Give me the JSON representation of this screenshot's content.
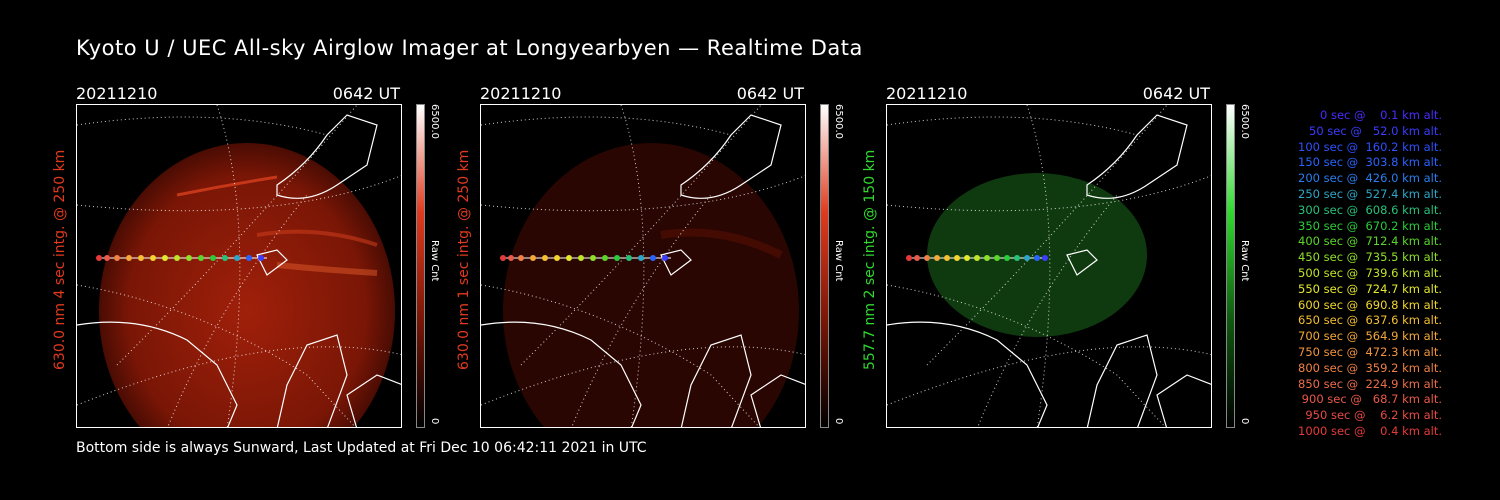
{
  "title": "Kyoto U / UEC All-sky Airglow Imager at Longyearbyen — Realtime Data",
  "footer": "Bottom side is always Sunward, Last Updated at Fri Dec 10 06:42:11 2021 in UTC",
  "colors": {
    "panel1": "#e03a1e",
    "panel2": "#e03a1e",
    "panel3": "#2fd92f"
  },
  "panels": [
    {
      "date": "20211210",
      "time": "0642 UT",
      "ylabel": "630.0 nm 4 sec intg. @ 250 km",
      "cbar_max": "6500.0",
      "cbar_min": "0",
      "cbar_unit": "Raw Cnt"
    },
    {
      "date": "20211210",
      "time": "0642 UT",
      "ylabel": "630.0 nm 1 sec intg. @ 250 km",
      "cbar_max": "6500.0",
      "cbar_min": "0",
      "cbar_unit": "Raw Cnt"
    },
    {
      "date": "20211210",
      "time": "0642 UT",
      "ylabel": "557.7 nm 2 sec intg. @ 150 km",
      "cbar_max": "6500.0",
      "cbar_min": "0",
      "cbar_unit": "Raw Cnt"
    }
  ],
  "legend": [
    {
      "text": "   0 sec @    0.1 km alt.",
      "color": "#4a2cff"
    },
    {
      "text": "  50 sec @   52.0 km alt.",
      "color": "#3a3cff"
    },
    {
      "text": " 100 sec @  160.2 km alt.",
      "color": "#2e50ff"
    },
    {
      "text": " 150 sec @  303.8 km alt.",
      "color": "#2a64ff"
    },
    {
      "text": " 200 sec @  426.0 km alt.",
      "color": "#2a7ef0"
    },
    {
      "text": " 250 sec @  527.4 km alt.",
      "color": "#2ea6c8"
    },
    {
      "text": " 300 sec @  608.6 km alt.",
      "color": "#27c27a"
    },
    {
      "text": " 350 sec @  670.2 km alt.",
      "color": "#2bcc3a"
    },
    {
      "text": " 400 sec @  712.4 km alt.",
      "color": "#5ad62a"
    },
    {
      "text": " 450 sec @  735.5 km alt.",
      "color": "#8ee02a"
    },
    {
      "text": " 500 sec @  739.6 km alt.",
      "color": "#bfe52a"
    },
    {
      "text": " 550 sec @  724.7 km alt.",
      "color": "#e2e82c"
    },
    {
      "text": " 600 sec @  690.8 km alt.",
      "color": "#f2d52e"
    },
    {
      "text": " 650 sec @  637.6 km alt.",
      "color": "#f5bf33"
    },
    {
      "text": " 700 sec @  564.9 km alt.",
      "color": "#f4a83a"
    },
    {
      "text": " 750 sec @  472.3 km alt.",
      "color": "#f29440"
    },
    {
      "text": " 800 sec @  359.2 km alt.",
      "color": "#ef8145"
    },
    {
      "text": " 850 sec @  224.9 km alt.",
      "color": "#ec6e48"
    },
    {
      "text": " 900 sec @   68.7 km alt.",
      "color": "#e95a48"
    },
    {
      "text": " 950 sec @    6.2 km alt.",
      "color": "#e84a44"
    },
    {
      "text": "1000 sec @    0.4 km alt.",
      "color": "#e63a3a"
    }
  ]
}
